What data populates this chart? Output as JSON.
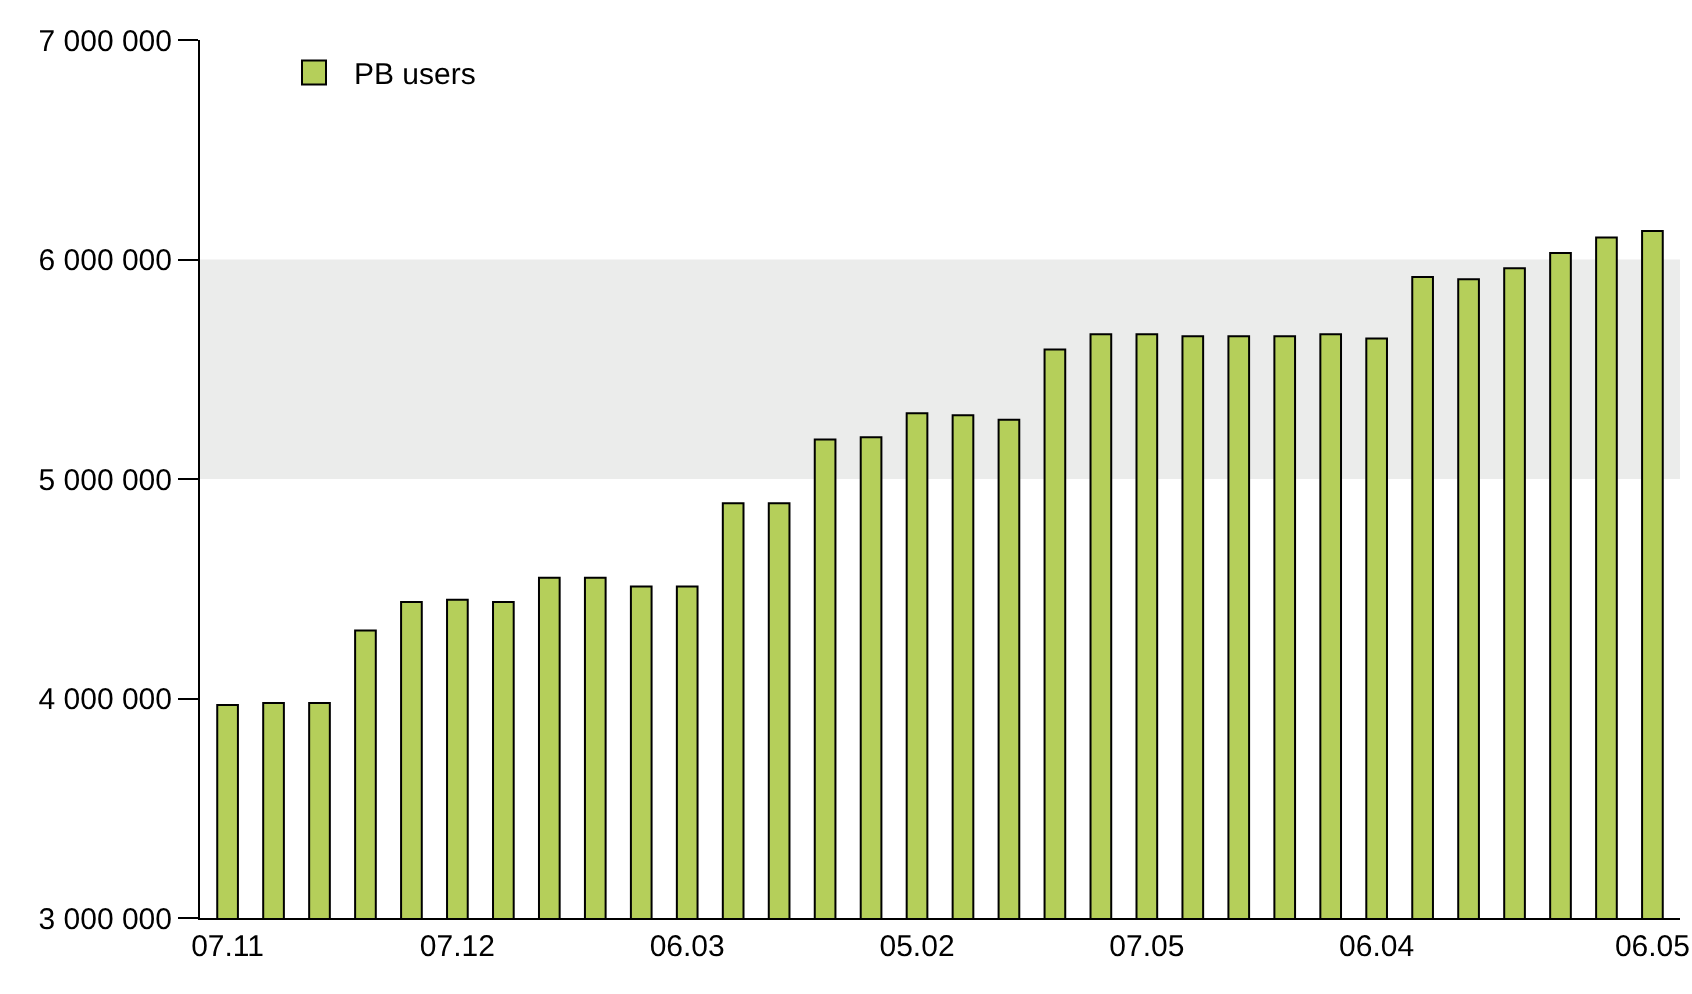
{
  "chart_data": {
    "type": "bar",
    "categories": [
      "07.11",
      null,
      null,
      null,
      null,
      "07.12",
      null,
      null,
      null,
      null,
      "06.03",
      null,
      null,
      null,
      null,
      "05.02",
      null,
      null,
      null,
      null,
      "07.05",
      null,
      null,
      null,
      null,
      "06.04",
      null,
      null,
      null,
      null,
      null,
      "06.05"
    ],
    "series": [
      {
        "name": "PB users",
        "color": "#b5cf5a",
        "values": [
          3970000,
          3980000,
          3980000,
          4310000,
          4440000,
          4450000,
          4440000,
          4550000,
          4550000,
          4510000,
          4510000,
          4890000,
          4890000,
          5180000,
          5190000,
          5300000,
          5290000,
          5270000,
          5590000,
          5660000,
          5660000,
          5650000,
          5650000,
          5650000,
          5660000,
          5640000,
          5920000,
          5910000,
          5960000,
          6030000,
          6100000,
          6130000
        ]
      }
    ],
    "ylim": [
      3000000,
      7000000
    ],
    "yticks": [
      {
        "value": 3000000,
        "label": "3 000 000"
      },
      {
        "value": 4000000,
        "label": "4 000 000"
      },
      {
        "value": 5000000,
        "label": "5 000 000"
      },
      {
        "value": 6000000,
        "label": "6 000 000"
      },
      {
        "value": 7000000,
        "label": "7 000 000"
      }
    ],
    "bands": [
      {
        "axis": "y",
        "from": 5000000,
        "to": 6000000,
        "color": "#ebeceb"
      }
    ],
    "grid": false,
    "legend": "top left"
  }
}
